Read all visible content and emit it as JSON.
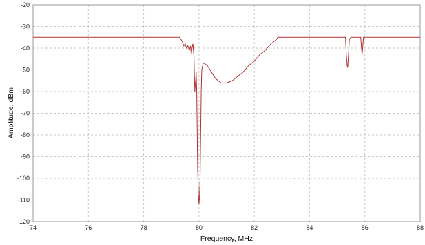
{
  "chart_data": {
    "type": "line",
    "title": "",
    "xlabel": "Frequency, MHz",
    "ylabel": "Amplitude, dBm",
    "xlim": [
      74,
      88
    ],
    "ylim": [
      -120,
      -20
    ],
    "xticks": [
      74,
      76,
      78,
      80,
      82,
      84,
      86,
      88
    ],
    "yticks": [
      -20,
      -30,
      -40,
      -50,
      -60,
      -70,
      -80,
      -90,
      -100,
      -110,
      -120
    ],
    "grid": true,
    "legend": "none",
    "series_color": "#b03030",
    "series": [
      {
        "x": [
          74.0,
          79.3,
          79.4,
          79.45,
          79.5,
          79.55,
          79.6,
          79.65,
          79.7,
          79.72,
          79.75,
          79.78,
          79.82,
          79.85,
          79.88,
          79.9,
          79.92,
          79.95,
          79.98,
          80.0,
          80.02,
          80.04,
          80.06,
          80.08,
          80.1,
          80.15,
          80.2,
          80.3,
          80.4,
          80.5,
          80.6,
          80.8,
          81.0,
          81.2,
          81.4,
          81.6,
          81.8,
          82.0,
          82.2,
          82.4,
          82.6,
          82.7,
          82.8,
          82.85,
          82.9,
          85.3,
          85.33,
          85.36,
          85.38,
          85.41,
          85.44,
          85.5,
          85.85,
          85.88,
          85.9,
          85.92,
          85.95,
          86.0,
          88.0
        ],
        "y": [
          -35,
          -35,
          -37,
          -39,
          -38,
          -40,
          -39,
          -41,
          -39,
          -43,
          -40,
          -38,
          -44,
          -60,
          -55,
          -51,
          -60,
          -95,
          -108,
          -112,
          -108,
          -100,
          -80,
          -60,
          -50,
          -47,
          -47,
          -48,
          -50,
          -52,
          -54,
          -56,
          -56,
          -55,
          -53,
          -51,
          -48,
          -46,
          -43,
          -41,
          -38,
          -37,
          -36,
          -35,
          -35,
          -35,
          -43,
          -48,
          -49,
          -43,
          -36,
          -35,
          -35,
          -40,
          -43,
          -40,
          -35,
          -35,
          -35
        ]
      }
    ]
  }
}
